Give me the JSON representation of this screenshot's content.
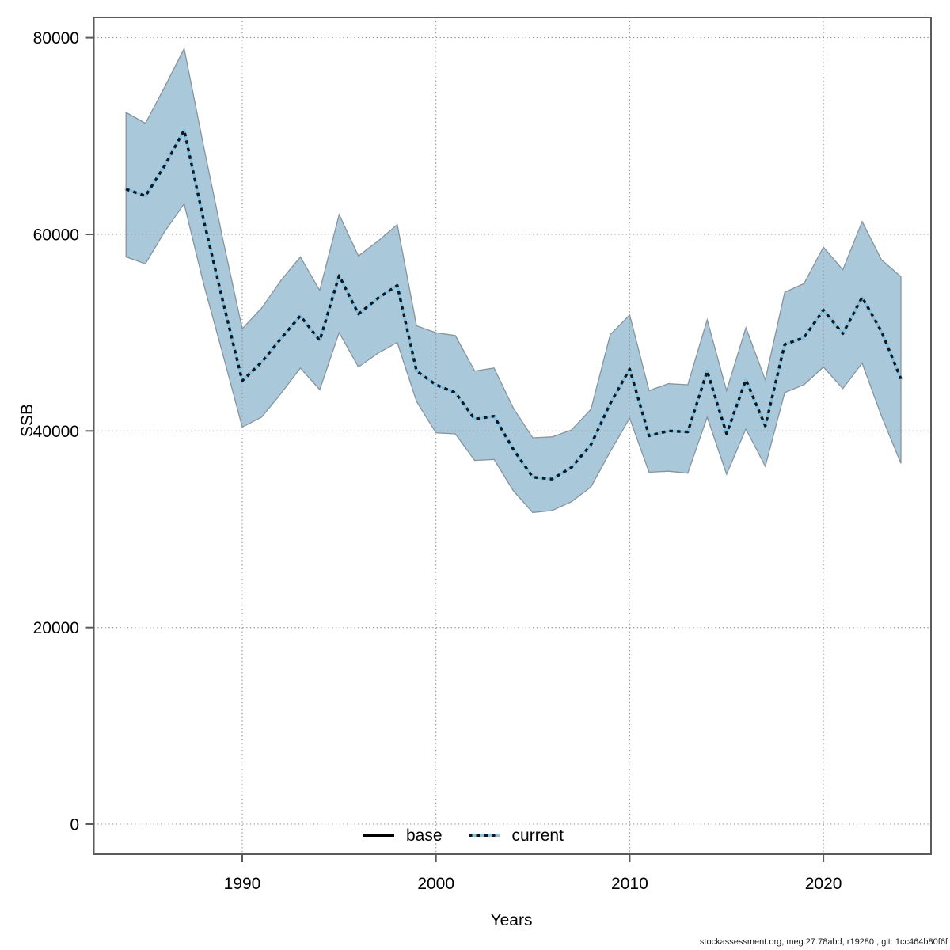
{
  "footer": {
    "text": "stockassessment.org, meg.27.78abd, r19280 , git: 1cc464b80f6f"
  },
  "chart_data": {
    "type": "line",
    "title": "",
    "xlabel": "Years",
    "ylabel": "SSB",
    "grid": true,
    "legend_position": "bottom-center-inside",
    "legend": [
      {
        "label": "base",
        "style": "solid-black-line"
      },
      {
        "label": "current",
        "style": "black-dotted-over-lightblue-line-with-ci-band"
      }
    ],
    "x_ticks": [
      1990,
      2000,
      2010,
      2020
    ],
    "x_tick_labels": [
      "1990",
      "2000",
      "2010",
      "2020"
    ],
    "y_ticks": [
      0,
      20000,
      40000,
      60000,
      80000
    ],
    "y_tick_labels": [
      "0",
      "20000",
      "40000",
      "60000",
      "80000"
    ],
    "ylim": [
      0,
      80000
    ],
    "xlim": [
      1984,
      2024
    ],
    "colors": {
      "band_fill": "#a9c8d9",
      "band_edge": "#86949e",
      "current_line_under": "#7cc4e8",
      "current_line_dots": "#161616",
      "grid": "#8a8a8a",
      "axis": "#5a5a5a"
    },
    "years": [
      1984,
      1985,
      1986,
      1987,
      1988,
      1989,
      1990,
      1991,
      1992,
      1993,
      1994,
      1995,
      1996,
      1997,
      1998,
      1999,
      2000,
      2001,
      2002,
      2003,
      2004,
      2005,
      2006,
      2007,
      2008,
      2009,
      2010,
      2011,
      2012,
      2013,
      2014,
      2015,
      2016,
      2017,
      2018,
      2019,
      2020,
      2021,
      2022,
      2023,
      2024
    ],
    "series": [
      {
        "name": "current",
        "values": [
          64600,
          63900,
          67000,
          70600,
          61500,
          53200,
          45100,
          47000,
          49400,
          51700,
          49200,
          55800,
          51900,
          53500,
          54800,
          46100,
          44700,
          43900,
          41200,
          41500,
          38100,
          35300,
          35100,
          36300,
          38600,
          42800,
          46300,
          39500,
          40000,
          39900,
          46100,
          39700,
          45200,
          40500,
          48800,
          49500,
          52300,
          49900,
          53600,
          50100,
          45300
        ]
      }
    ],
    "band": {
      "name": "current confidence interval",
      "lower": [
        57700,
        57000,
        60300,
        63100,
        55000,
        47800,
        40400,
        41400,
        43800,
        46400,
        44200,
        50000,
        46500,
        47900,
        49000,
        43000,
        39800,
        39700,
        37000,
        37100,
        33900,
        31700,
        31900,
        32800,
        34300,
        37900,
        41300,
        35800,
        35900,
        35700,
        41400,
        35600,
        40200,
        36400,
        43900,
        44700,
        46500,
        44300,
        46900,
        41500,
        36700
      ],
      "upper": [
        72400,
        71300,
        75000,
        78900,
        69000,
        59500,
        50400,
        52500,
        55300,
        57700,
        54300,
        62000,
        57800,
        59300,
        61000,
        50700,
        50000,
        49700,
        46100,
        46400,
        42300,
        39300,
        39400,
        40100,
        42200,
        49800,
        51800,
        44100,
        44800,
        44700,
        51300,
        44100,
        50500,
        45200,
        54100,
        55000,
        58700,
        56400,
        61300,
        57400,
        55700
      ]
    }
  }
}
